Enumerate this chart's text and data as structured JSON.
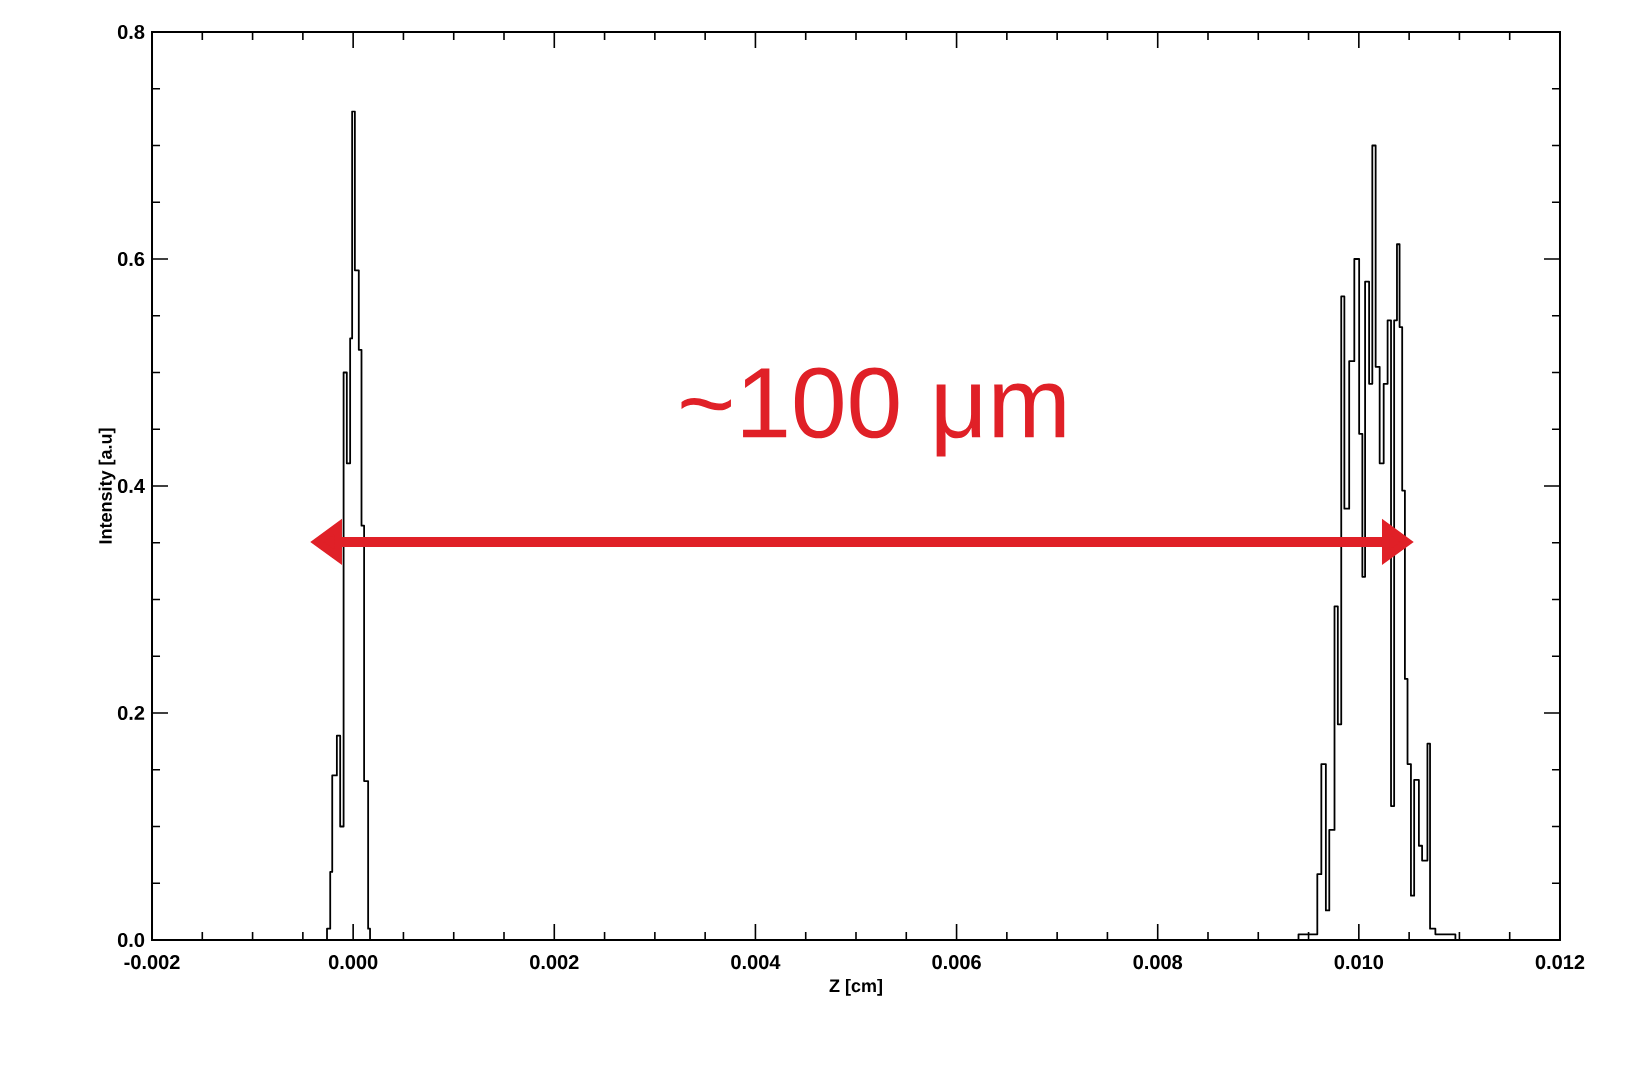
{
  "chart_data": {
    "type": "step",
    "xlabel": "Z [cm]",
    "ylabel": "Intensity [a.u]",
    "xlim": [
      -0.002,
      0.012
    ],
    "ylim": [
      0,
      0.8
    ],
    "xticks": [
      -0.002,
      {
        "value": 0,
        "label": "0.000"
      },
      0.002,
      0.004,
      0.006,
      0.008,
      {
        "value": 0.01,
        "label": "0.010"
      },
      0.012
    ],
    "yticks": [
      {
        "value": 0,
        "label": "0.0"
      },
      0.2,
      0.4,
      0.6,
      0.8
    ],
    "grid": false,
    "marker": "none",
    "series": [
      {
        "color": "#000000",
        "x": [
          -0.000293,
          -0.00026,
          -0.000228,
          -0.000208,
          -0.000162,
          -0.000129,
          -9.5e-05,
          -6.3e-05,
          -3e-05,
          -1e-05,
          1.7e-05,
          5.6e-05,
          8.3e-05,
          0.000109,
          0.000149,
          0.000168,
          0.0094,
          0.009587,
          0.009627,
          0.009672,
          0.009706,
          0.009758,
          0.009791,
          0.009825,
          0.009856,
          0.009904,
          0.009955,
          0.010003,
          0.010035,
          0.010062,
          0.010102,
          0.010134,
          0.010167,
          0.010207,
          0.010247,
          0.010286,
          0.01032,
          0.010351,
          0.010379,
          0.010405,
          0.010431,
          0.010458,
          0.010484,
          0.010518,
          0.01055,
          0.010597,
          0.010629,
          0.010682,
          0.010708,
          0.010761,
          0.01096
        ],
        "values": [
          0,
          0.01,
          0.06,
          0.145,
          0.18,
          0.1,
          0.5,
          0.42,
          0.53,
          0.73,
          0.59,
          0.52,
          0.365,
          0.14,
          0.01,
          0,
          0.005,
          0.058,
          0.155,
          0.026,
          0.097,
          0.294,
          0.19,
          0.567,
          0.38,
          0.51,
          0.6,
          0.446,
          0.32,
          0.58,
          0.49,
          0.7,
          0.505,
          0.42,
          0.49,
          0.546,
          0.118,
          0.546,
          0.613,
          0.54,
          0.396,
          0.23,
          0.155,
          0.039,
          0.141,
          0.083,
          0.07,
          0.173,
          0.01,
          0.005,
          0
        ]
      }
    ],
    "annotations": [
      "~100 μm"
    ]
  }
}
